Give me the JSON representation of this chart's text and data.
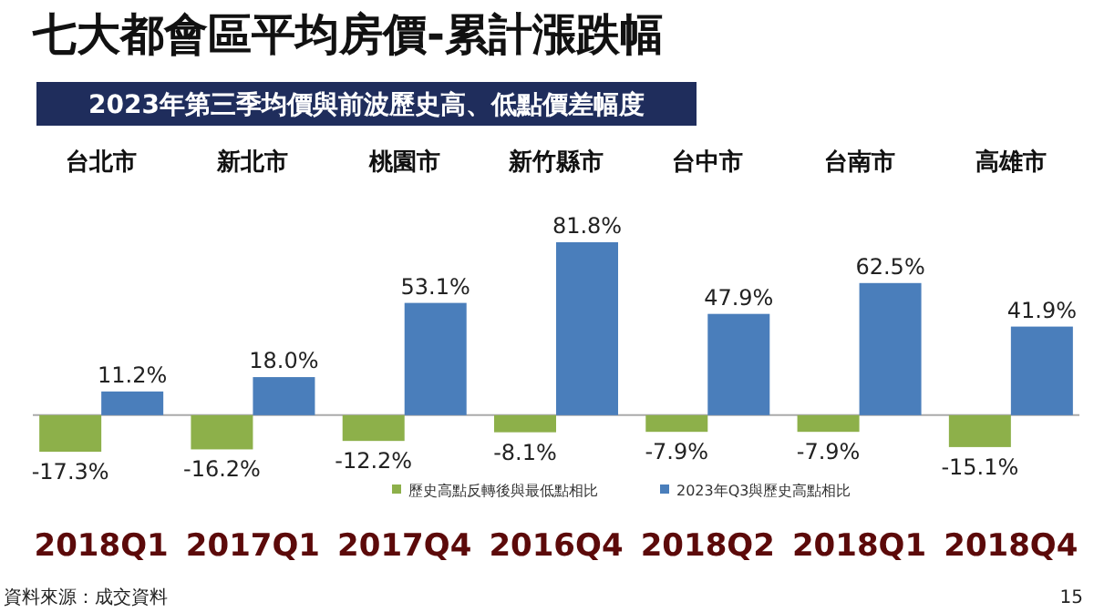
{
  "chart_data": {
    "type": "bar",
    "title": "七大都會區平均房價-累計漲跌幅",
    "subtitle": "2023年第三季均價與前波歷史高、低點價差幅度",
    "categories": [
      "台北市",
      "新北市",
      "桃園市",
      "新竹縣市",
      "台中市",
      "台南市",
      "高雄市"
    ],
    "series": [
      {
        "name": "歷史高點反轉後與最低點相比",
        "color": "#8db04a",
        "values": [
          -17.3,
          -16.2,
          -12.2,
          -8.1,
          -7.9,
          -7.9,
          -15.1
        ],
        "value_labels": [
          "-17.3%",
          "-16.2%",
          "-12.2%",
          "-8.1%",
          "-7.9%",
          "-7.9%",
          "-15.1%"
        ]
      },
      {
        "name": "2023年Q3與歷史高點相比",
        "color": "#4a7ebb",
        "values": [
          11.2,
          18.0,
          53.1,
          81.8,
          47.9,
          62.5,
          41.9
        ],
        "value_labels": [
          "11.2%",
          "18.0%",
          "53.1%",
          "81.8%",
          "47.9%",
          "62.5%",
          "41.9%"
        ]
      }
    ],
    "legend": "bottom",
    "annotations": [
      "2018Q1",
      "2017Q1",
      "2017Q4",
      "2016Q4",
      "2018Q2",
      "2018Q1",
      "2018Q4",
      "資料來源：成交資料",
      "15"
    ]
  }
}
